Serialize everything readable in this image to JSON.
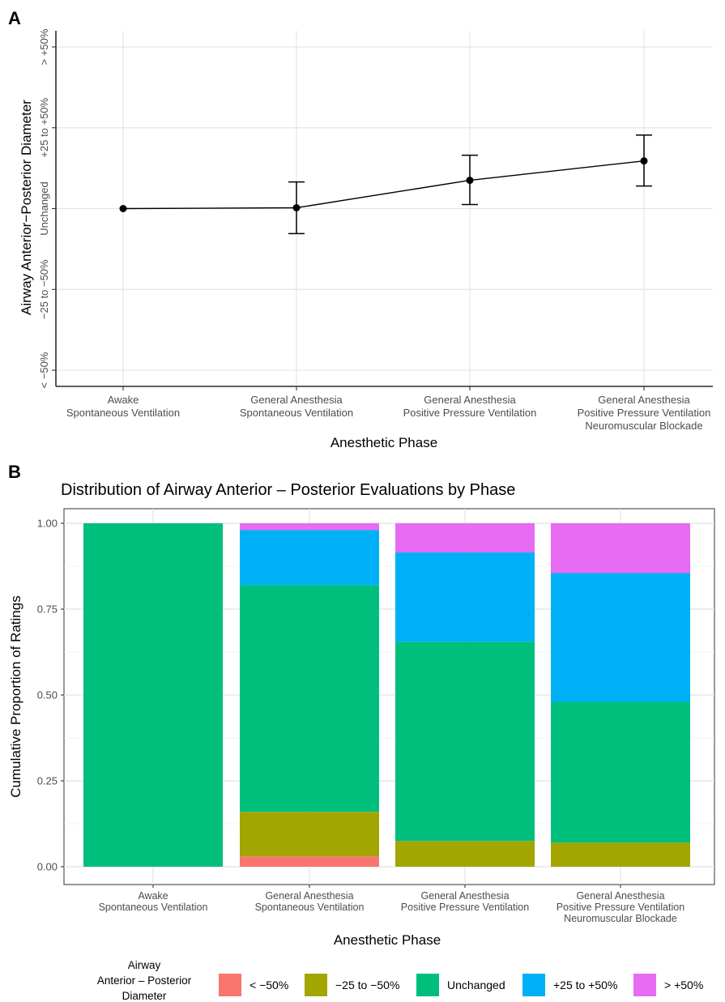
{
  "chart_data": [
    {
      "panel": "A",
      "type": "line",
      "xlabel": "Anesthetic Phase",
      "ylabel": "Airway Anterior−Posterior Diameter",
      "categories": [
        [
          "Awake",
          "Spontaneous Ventilation"
        ],
        [
          "General Anesthesia",
          "Spontaneous Ventilation"
        ],
        [
          "General Anesthesia",
          "Positive Pressure Ventilation"
        ],
        [
          "General Anesthesia",
          "Positive Pressure Ventilation",
          "Neuromuscular Blockade"
        ]
      ],
      "y_ticks": [
        "< −50%",
        "−25 to −50%",
        "Unchanged",
        "+25 to +50%",
        "> +50%"
      ],
      "y_tick_values": [
        1,
        2,
        3,
        4,
        5
      ],
      "ylim": [
        0.8,
        5.2
      ],
      "grid": true,
      "values": [
        3.0,
        3.01,
        3.35,
        3.59
      ],
      "error_low": [
        3.0,
        2.69,
        3.05,
        3.28
      ],
      "error_high": [
        3.0,
        3.33,
        3.66,
        3.91
      ]
    },
    {
      "panel": "B",
      "type": "bar",
      "stacked": true,
      "title": "Distribution of Airway Anterior – Posterior Evaluations by Phase",
      "xlabel": "Anesthetic Phase",
      "ylabel": "Cumulative Proportion of Ratings",
      "categories": [
        [
          "Awake",
          "Spontaneous Ventilation"
        ],
        [
          "General Anesthesia",
          "Spontaneous Ventilation"
        ],
        [
          "General Anesthesia",
          "Positive Pressure Ventilation"
        ],
        [
          "General Anesthesia",
          "Positive Pressure Ventilation",
          "Neuromuscular Blockade"
        ]
      ],
      "ylim": [
        0,
        1
      ],
      "y_ticks": [
        "0.00",
        "0.25",
        "0.50",
        "0.75",
        "1.00"
      ],
      "grid": true,
      "legend_title": [
        "Airway",
        "Anterior – Posterior",
        "Diameter"
      ],
      "legend_position": "bottom",
      "series": [
        {
          "name": "< −50%",
          "color": "#F8766D",
          "values": [
            0,
            0.03,
            0,
            0
          ]
        },
        {
          "name": "−25 to −50%",
          "color": "#A3A500",
          "values": [
            0,
            0.13,
            0.075,
            0.07
          ]
        },
        {
          "name": "Unchanged",
          "color": "#00BF7D",
          "values": [
            1.0,
            0.66,
            0.58,
            0.41
          ]
        },
        {
          "name": "+25 to +50%",
          "color": "#00B0F6",
          "values": [
            0,
            0.16,
            0.26,
            0.375
          ]
        },
        {
          "name": "> +50%",
          "color": "#E76BF3",
          "values": [
            0,
            0.02,
            0.085,
            0.145
          ]
        }
      ]
    }
  ],
  "panel_labels": [
    "A",
    "B"
  ]
}
